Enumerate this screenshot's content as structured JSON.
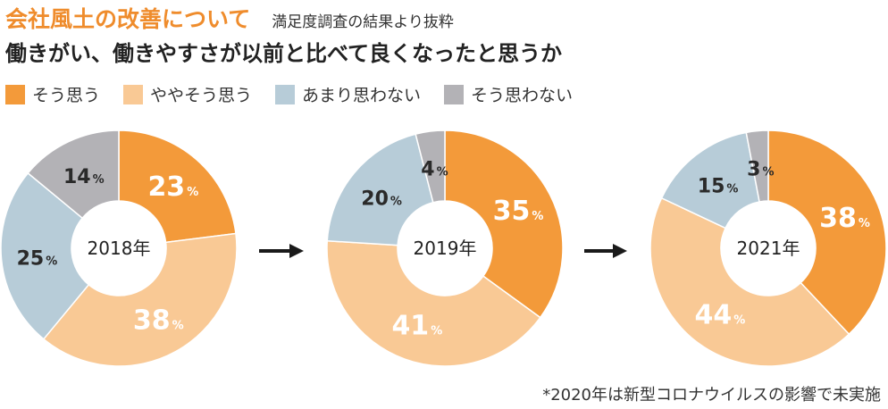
{
  "header": {
    "title": "会社風土の改善について",
    "subtitle": "満足度調査の結果より抜粋"
  },
  "question": "働きがい、働きやすさが以前と比べて良くなったと思うか",
  "footnote": "*2020年は新型コロナウイルスの影響で未実施",
  "colors": {
    "agree": "#f39a3a",
    "somewhat_agree": "#f9c995",
    "somewhat_disagree": "#b7ccd8",
    "disagree": "#b3b2b6",
    "arrow": "#1a1a1a"
  },
  "legend": [
    {
      "label": "そう思う",
      "color": "#f39a3a"
    },
    {
      "label": "ややそう思う",
      "color": "#f9c995"
    },
    {
      "label": "あまり思わない",
      "color": "#b7ccd8"
    },
    {
      "label": "そう思わない",
      "color": "#b3b2b6"
    }
  ],
  "chart_data": {
    "type": "pie",
    "variant": "donut",
    "title": "働きがい、働きやすさが以前と比べて良くなったと思うか",
    "categories": [
      "そう思う",
      "ややそう思う",
      "あまり思わない",
      "そう思わない"
    ],
    "percent_suffix": "%",
    "charts": [
      {
        "year": "2018年",
        "values": [
          23,
          38,
          25,
          14
        ]
      },
      {
        "year": "2019年",
        "values": [
          35,
          41,
          20,
          4
        ]
      },
      {
        "year": "2021年",
        "values": [
          38,
          44,
          15,
          3
        ]
      }
    ]
  }
}
